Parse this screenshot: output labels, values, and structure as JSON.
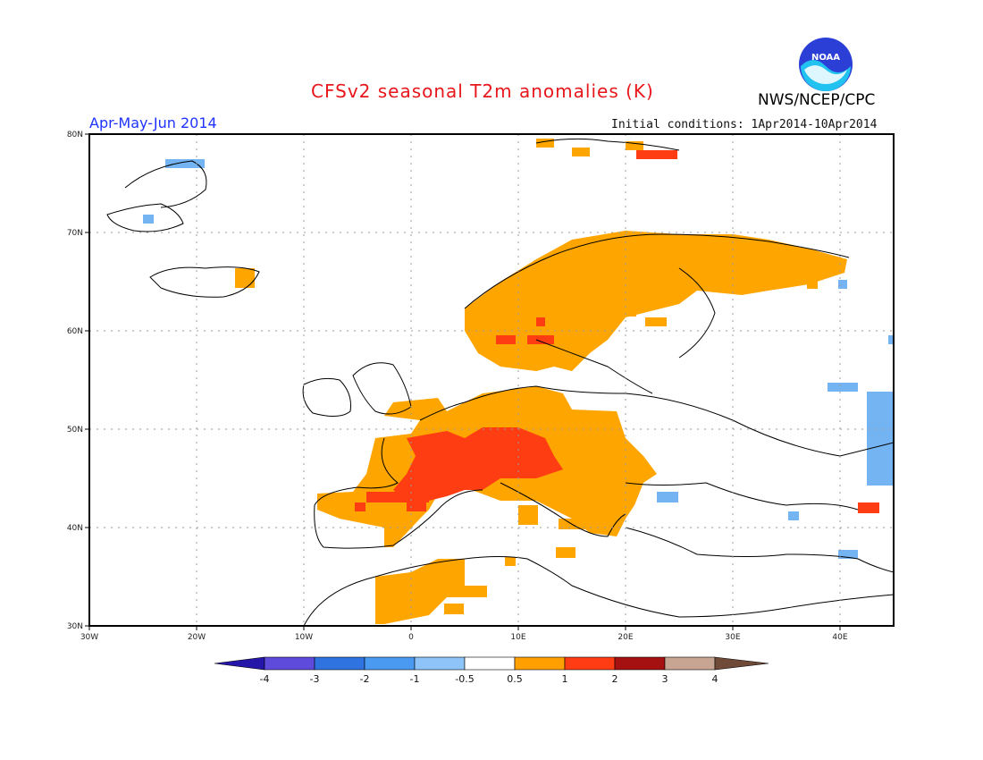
{
  "header": {
    "title": "CFSv2 seasonal T2m anomalies (K)",
    "period": "Apr-May-Jun 2014",
    "initial_conditions": "Initial conditions: 1Apr2014-10Apr2014",
    "agency": "NWS/NCEP/CPC",
    "logo_text": "NOAA"
  },
  "map": {
    "lon_labels": [
      "30W",
      "20W",
      "10W",
      "0",
      "10E",
      "20E",
      "30E",
      "40E"
    ],
    "lat_labels": [
      "80N",
      "70N",
      "60N",
      "50N",
      "40N",
      "30N"
    ],
    "extent": {
      "lon": [
        -30,
        45
      ],
      "lat": [
        30,
        80
      ]
    },
    "grid": "dotted",
    "anomaly_colors": {
      "warm_0.5_1": "#ffa500",
      "warm_1_2": "#ff3d12",
      "cool_-1_-0.5": "#74b4f2"
    }
  },
  "colorbar": {
    "ticks": [
      "-4",
      "-3",
      "-2",
      "-1",
      "-0.5",
      "0.5",
      "1",
      "2",
      "3",
      "4"
    ],
    "colors": [
      "#2416a8",
      "#5e4bdb",
      "#2f73e0",
      "#4a9af2",
      "#8ec4f8",
      "#ffffff",
      "#ffa000",
      "#ff3c14",
      "#a51010",
      "#c7a592",
      "#6f4a38"
    ]
  }
}
